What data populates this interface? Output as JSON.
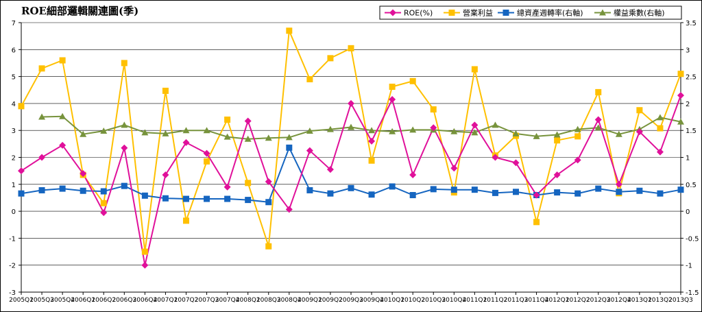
{
  "chart_data": {
    "type": "line",
    "title": "ROE細部邏輯關連圖(季)",
    "categories": [
      "2005Q1",
      "2005Q3",
      "2005Q4",
      "2006Q1",
      "2006Q2",
      "2006Q3",
      "2006Q4",
      "2007Q1",
      "2007Q2",
      "2007Q3",
      "2007Q4",
      "2008Q1",
      "2008Q3",
      "2008Q4",
      "2009Q1",
      "2009Q2",
      "2009Q3",
      "2009Q4",
      "2010Q1",
      "2010Q2",
      "2010Q3",
      "2010Q4",
      "2011Q1",
      "2011Q2",
      "2011Q3",
      "2011Q4",
      "2012Q1",
      "2012Q2",
      "2012Q3",
      "2012Q4",
      "2013Q1",
      "2013Q2",
      "2013Q3"
    ],
    "y_left": {
      "min": -3,
      "max": 7,
      "ticks": [
        "-3",
        "-2",
        "-1",
        "0",
        "1",
        "2",
        "3",
        "4",
        "5",
        "6",
        "7"
      ],
      "tick_values": [
        -3,
        -2,
        -1,
        0,
        1,
        2,
        3,
        4,
        5,
        6,
        7
      ]
    },
    "y_right": {
      "min": -1.5,
      "max": 3.5,
      "ticks": [
        "-1.5",
        "-1",
        "-0.5",
        "0",
        "0.5",
        "1",
        "1.5",
        "2",
        "2.5",
        "3",
        "3.5"
      ],
      "tick_values": [
        -1.5,
        -1,
        -0.5,
        0,
        0.5,
        1,
        1.5,
        2,
        2.5,
        3,
        3.5
      ]
    },
    "grid": true,
    "legend_position": "top-right",
    "series": [
      {
        "name": "ROE(%)",
        "axis": "left",
        "color": "#e0109a",
        "marker": "diamond",
        "values": [
          1.5,
          2.0,
          2.45,
          1.4,
          -0.05,
          2.35,
          -2.0,
          1.35,
          2.55,
          2.15,
          0.9,
          3.35,
          1.1,
          0.07,
          2.25,
          1.55,
          4.0,
          2.6,
          4.15,
          1.35,
          3.1,
          1.6,
          3.2,
          2.0,
          1.8,
          0.6,
          1.35,
          1.9,
          3.4,
          1.0,
          2.95,
          2.2,
          4.3
        ]
      },
      {
        "name": "營業利益",
        "axis": "left",
        "color": "#ffc000",
        "marker": "square",
        "values": [
          3.9,
          5.3,
          5.6,
          1.35,
          0.3,
          5.5,
          -1.5,
          4.47,
          -0.35,
          1.85,
          3.4,
          1.05,
          -1.3,
          6.7,
          4.9,
          5.68,
          6.05,
          1.88,
          4.62,
          4.83,
          3.78,
          0.7,
          5.27,
          2.07,
          2.8,
          -0.4,
          2.63,
          2.78,
          4.42,
          0.67,
          3.75,
          3.08,
          5.1
        ]
      },
      {
        "name": "總資產週轉率(右軸)",
        "axis": "right",
        "color": "#1565c0",
        "marker": "square",
        "values": [
          0.33,
          0.39,
          0.42,
          0.38,
          0.37,
          0.47,
          0.29,
          0.24,
          0.23,
          0.23,
          0.23,
          0.21,
          0.17,
          1.18,
          0.39,
          0.33,
          0.43,
          0.31,
          0.46,
          0.3,
          0.41,
          0.4,
          0.4,
          0.34,
          0.36,
          0.3,
          0.35,
          0.33,
          0.42,
          0.36,
          0.38,
          0.33,
          0.4
        ]
      },
      {
        "name": "權益乘數(右軸)",
        "axis": "right",
        "color": "#77933c",
        "marker": "triangle",
        "values": [
          null,
          1.75,
          1.76,
          1.43,
          1.49,
          1.6,
          1.46,
          1.44,
          1.5,
          1.5,
          1.38,
          1.34,
          1.36,
          1.37,
          1.49,
          1.52,
          1.56,
          1.5,
          1.48,
          1.51,
          1.51,
          1.48,
          1.46,
          1.6,
          1.44,
          1.39,
          1.42,
          1.52,
          1.55,
          1.43,
          1.52,
          1.74,
          1.66
        ]
      }
    ]
  }
}
